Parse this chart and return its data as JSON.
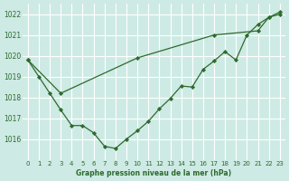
{
  "title": "Graphe pression niveau de la mer (hPa)",
  "background_color": "#ceeae4",
  "grid_color": "#ffffff",
  "line_color": "#2d6a2d",
  "xlim": [
    -0.5,
    23.5
  ],
  "ylim": [
    1015.0,
    1022.5
  ],
  "yticks": [
    1016,
    1017,
    1018,
    1019,
    1020,
    1021,
    1022
  ],
  "xticks": [
    0,
    1,
    2,
    3,
    4,
    5,
    6,
    7,
    8,
    9,
    10,
    11,
    12,
    13,
    14,
    15,
    16,
    17,
    18,
    19,
    20,
    21,
    22,
    23
  ],
  "series1_x": [
    0,
    1,
    2,
    3,
    4,
    5,
    6,
    7,
    8,
    9,
    10,
    11,
    12,
    13,
    14,
    15,
    16,
    17,
    18,
    19,
    20,
    21,
    22,
    23
  ],
  "series1_y": [
    1019.8,
    1019.0,
    1018.2,
    1017.4,
    1016.65,
    1016.65,
    1016.3,
    1015.65,
    1015.55,
    1016.0,
    1016.4,
    1016.85,
    1017.45,
    1017.95,
    1018.55,
    1018.5,
    1019.35,
    1019.75,
    1020.2,
    1019.8,
    1021.0,
    1021.5,
    1021.85,
    1022.0
  ],
  "series2_x": [
    0,
    3,
    10,
    17,
    21,
    22,
    23
  ],
  "series2_y": [
    1019.8,
    1018.2,
    1019.9,
    1021.0,
    1021.2,
    1021.85,
    1022.1
  ],
  "figsize": [
    3.2,
    2.0
  ],
  "dpi": 100
}
